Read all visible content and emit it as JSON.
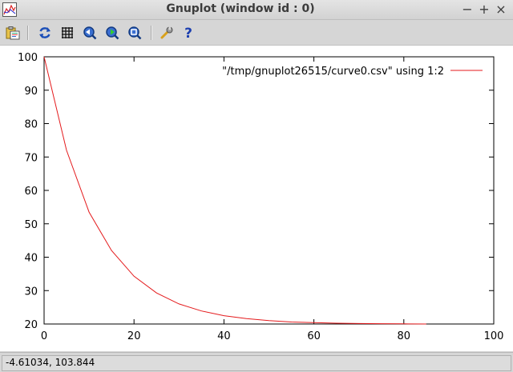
{
  "window": {
    "title": "Gnuplot (window id : 0)",
    "controls": {
      "minimize": "−",
      "maximize": "+",
      "close": "×"
    }
  },
  "toolbar": {
    "buttons": [
      {
        "name": "copy-to-clipboard",
        "icon": "clipboard-icon"
      },
      {
        "name": "replot",
        "icon": "refresh-icon"
      },
      {
        "name": "toggle-grid",
        "icon": "grid-icon"
      },
      {
        "name": "zoom-previous",
        "icon": "zoom-back-icon"
      },
      {
        "name": "zoom-next",
        "icon": "zoom-forward-icon"
      },
      {
        "name": "autoscale",
        "icon": "zoom-fit-icon"
      },
      {
        "name": "settings",
        "icon": "wrench-icon"
      },
      {
        "name": "help",
        "icon": "help-icon"
      }
    ]
  },
  "status": {
    "coordinates": "-4.61034,  103.844"
  },
  "chart_data": {
    "type": "line",
    "title": "",
    "xlabel": "",
    "ylabel": "",
    "xlim": [
      0,
      100
    ],
    "ylim": [
      20,
      100
    ],
    "xticks": [
      "0",
      "20",
      "40",
      "60",
      "80",
      "100"
    ],
    "yticks": [
      "20",
      "30",
      "40",
      "50",
      "60",
      "70",
      "80",
      "90",
      "100"
    ],
    "grid": false,
    "legend_position": "top-right",
    "series": [
      {
        "name": "\"/tmp/gnuplot26515/curve0.csv\" using 1:2",
        "color": "#e41a1c",
        "x": [
          0,
          5,
          10,
          15,
          20,
          25,
          30,
          35,
          40,
          45,
          50,
          55,
          60,
          65,
          70,
          75,
          80,
          85
        ],
        "y": [
          100,
          72,
          53.5,
          42,
          34.3,
          29.3,
          26,
          23.9,
          22.5,
          21.6,
          21,
          20.6,
          20.4,
          20.25,
          20.15,
          20.1,
          20.05,
          20.0
        ]
      }
    ]
  }
}
